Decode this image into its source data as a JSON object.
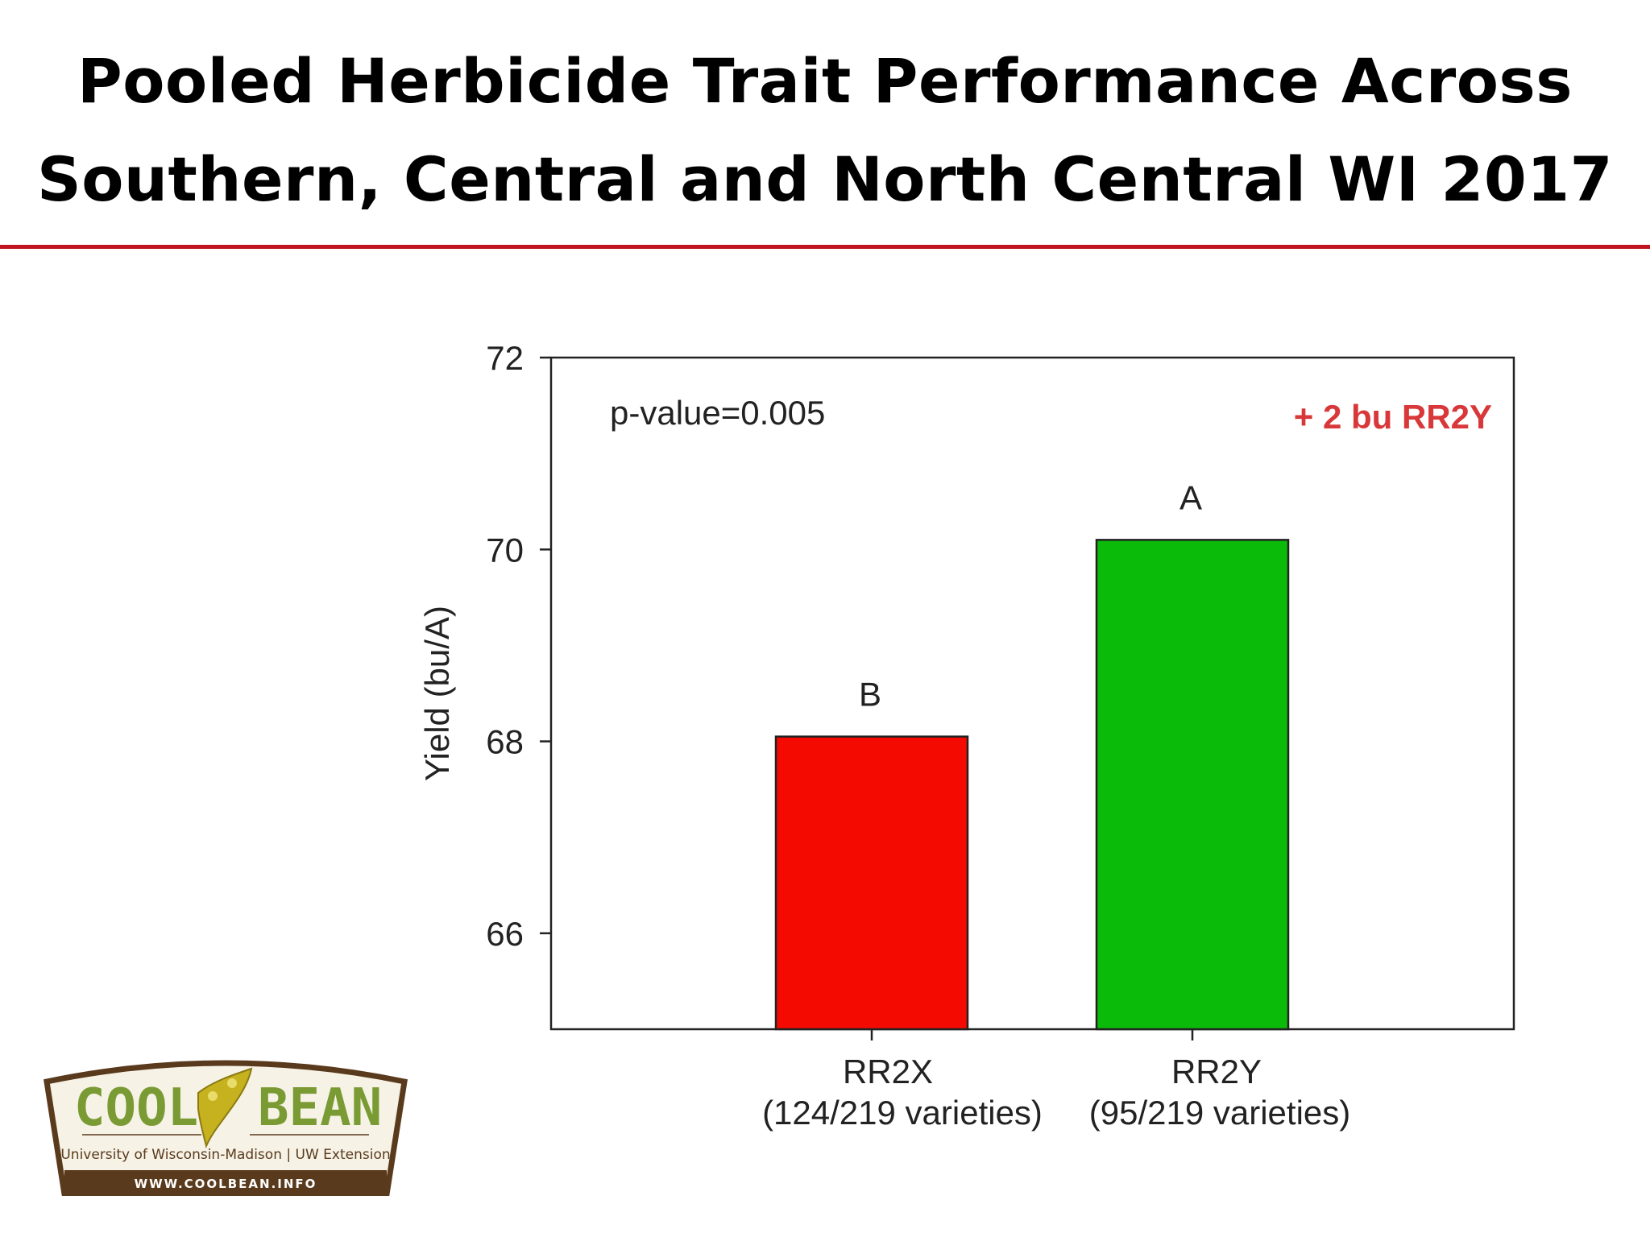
{
  "title": {
    "line1": "Pooled Herbicide Trait Performance Across",
    "line2": "Southern, Central and North Central WI 2017"
  },
  "colors": {
    "accent_rule": "#c0151f",
    "bar_rr2x": "#f40a00",
    "bar_rr2y": "#0abb0a",
    "annotation_red": "#d9383a",
    "logo_brown": "#5a3a1c",
    "logo_green": "#7a9a33"
  },
  "chart_data": {
    "type": "bar",
    "title": "",
    "xlabel": "",
    "ylabel": "Yield (bu/A)",
    "ylim": [
      65,
      72
    ],
    "yticks": [
      66,
      68,
      70,
      72
    ],
    "grid": false,
    "categories": [
      "RR2X",
      "RR2Y"
    ],
    "category_sublabels": [
      "(124/219 varieties)",
      "(95/219 varieties)"
    ],
    "values": [
      68.05,
      70.1
    ],
    "significance_letters": [
      "B",
      "A"
    ],
    "annotations": {
      "p_value": "p-value=0.005",
      "difference": "+ 2 bu RR2Y"
    }
  },
  "logo": {
    "brand_left": "COOL",
    "brand_right": "BEAN",
    "icon": "soybean-pod-icon",
    "affiliation": "University of Wisconsin-Madison | UW Extension",
    "url": "WWW.COOLBEAN.INFO"
  }
}
